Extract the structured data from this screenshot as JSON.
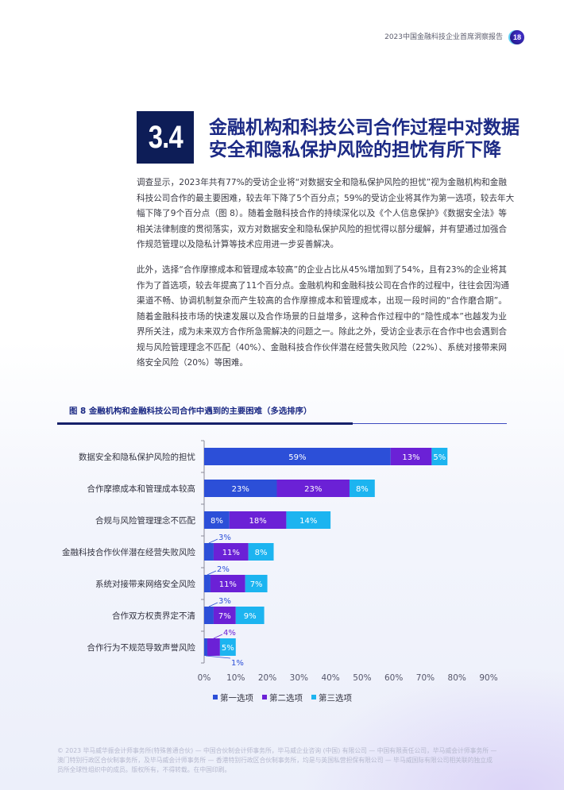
{
  "header": {
    "report_title": "2023中国金融科技企业首席洞察报告",
    "page_number": "18"
  },
  "section": {
    "number": "3.4",
    "title_lines": [
      "金融机构和科技公司合作过程中对数据",
      "安全和隐私保护风险的担忧有所下降"
    ]
  },
  "body": {
    "paragraphs": [
      [
        "调查显示，2023年共有77%的受访企业将“对数据安全和隐私保护风险的担忧”视为金融机构和金融",
        "科技公司合作的最主要困难，较去年下降了5个百分点；59%的受访企业将其作为第一选项，较去年大",
        "幅下降了9个百分点（图 8）。随着金融科技合作的持续深化以及《个人信息保护》《数据安全法》等",
        "相关法律制度的贯彻落实，双方对数据安全和隐私保护风险的担忧得以部分缓解，并有望通过加强合",
        "作规范管理以及隐私计算等技术应用进一步妥善解决。"
      ],
      [
        "此外，选择“合作摩擦成本和管理成本较高”的企业占比从45%增加到了54%，且有23%的企业将其",
        "作为了首选项，较去年提高了11个百分点。金融机构和金融科技公司在合作的过程中，往往会因沟通",
        "渠道不畅、协调机制复杂而产生较高的合作摩擦成本和管理成本，出现一段时间的“合作磨合期”。",
        "随着金融科技市场的快速发展以及合作场景的日益增多，这种合作过程中的“隐性成本”也越发为业",
        "界所关注，成为未来双方合作所急需解决的问题之一。除此之外，受访企业表示在合作中也会遇到合",
        "规与风险管理理念不匹配（40%）、金融科技合作伙伴潜在经营失败风险（22%）、系统对接带来网",
        "络安全风险（20%）等困难。"
      ]
    ]
  },
  "chart_data": {
    "type": "bar",
    "orientation": "horizontal",
    "stacked": true,
    "title": "图 8 金融机构和金融科技公司合作中遇到的主要困难（多选排序）",
    "categories": [
      "数据安全和隐私保护风险的担忧",
      "合作摩擦成本和管理成本较高",
      "合规与风险管理理念不匹配",
      "金融科技合作伙伴潜在经营失败风险",
      "系统对接带来网络安全风险",
      "合作双方权责界定不清",
      "合作行为不规范导致声誉风险"
    ],
    "series": [
      {
        "name": "第一选项",
        "values": [
          59,
          23,
          8,
          3,
          2,
          3,
          1
        ],
        "color": "#2c4fd8"
      },
      {
        "name": "第二选项",
        "values": [
          13,
          23,
          18,
          11,
          11,
          7,
          4
        ],
        "color": "#6b21d6"
      },
      {
        "name": "第三选项",
        "values": [
          5,
          8,
          14,
          8,
          7,
          9,
          5
        ],
        "color": "#1cb4f0"
      }
    ],
    "unit": "%",
    "xlim": [
      0,
      90
    ],
    "x_ticks": [
      0,
      10,
      20,
      30,
      40,
      50,
      60,
      70,
      80,
      90
    ],
    "xlabel": "",
    "ylabel": "",
    "grid": false,
    "legend_position": "bottom"
  },
  "footer": {
    "copyright_lines": [
      "© 2023 毕马威华振会计师事务所(特殊普通合伙) — 中国合伙制会计师事务所，毕马威企业咨询 (中国) 有限公司 — 中国有限责任公司，毕马威会计师事务所 —",
      "澳门特别行政区合伙制事务所，及毕马威会计师事务所 — 香港特别行政区合伙制事务所，均是与英国私营担保有限公司 — 毕马威国际有限公司相关联的独立成",
      "员所全球性组织中的成员。版权所有，不得转载。在中国印刷。"
    ]
  }
}
